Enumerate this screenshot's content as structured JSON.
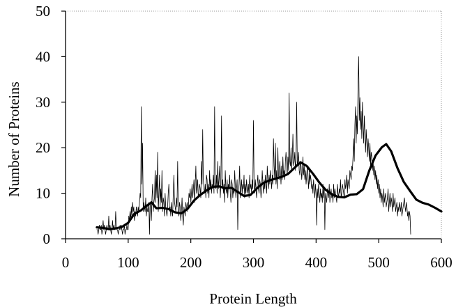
{
  "chart_data": {
    "type": "line",
    "title": "",
    "xlabel": "Protein Length",
    "ylabel": "Number of Proteins",
    "xlim": [
      0,
      600
    ],
    "ylim": [
      0,
      50
    ],
    "xticks": [
      0,
      100,
      200,
      300,
      400,
      500,
      600
    ],
    "yticks": [
      0,
      10,
      20,
      30,
      40,
      50
    ],
    "grid": false,
    "legend": "none",
    "series": [
      {
        "style": "thin-noisy",
        "color": "#000000",
        "x_start": 50,
        "x_step": 1,
        "values": [
          2,
          2,
          1,
          2,
          3,
          2,
          2,
          3,
          1,
          2,
          4,
          2,
          3,
          2,
          1,
          2,
          3,
          2,
          2,
          5,
          2,
          3,
          2,
          1,
          2,
          4,
          2,
          3,
          2,
          2,
          6,
          3,
          2,
          2,
          1,
          2,
          2,
          3,
          2,
          3,
          2,
          1,
          2,
          2,
          3,
          1,
          2,
          2,
          3,
          2,
          2,
          5,
          4,
          6,
          4,
          7,
          5,
          8,
          6,
          7,
          4,
          6,
          5,
          7,
          6,
          5,
          7,
          6,
          8,
          10,
          9,
          29,
          12,
          21,
          6,
          8,
          7,
          6,
          9,
          5,
          7,
          6,
          6,
          8,
          1,
          8,
          8,
          4,
          9,
          12,
          6,
          8,
          9,
          15,
          8,
          14,
          9,
          19,
          6,
          10,
          14,
          7,
          11,
          8,
          15,
          6,
          9,
          8,
          5,
          10,
          7,
          6,
          5,
          7,
          10,
          12,
          6,
          7,
          5,
          8,
          6,
          5,
          10,
          14,
          8,
          7,
          6,
          9,
          7,
          17,
          6,
          5,
          8,
          7,
          4,
          6,
          9,
          5,
          3,
          7,
          6,
          5,
          8,
          7,
          6,
          8,
          7,
          10,
          9,
          11,
          8,
          10,
          12,
          9,
          11,
          13,
          8,
          12,
          16,
          10,
          11,
          13,
          9,
          10,
          12,
          11,
          9,
          17,
          12,
          24,
          13,
          11,
          10,
          12,
          9,
          14,
          13,
          10,
          12,
          9,
          15,
          11,
          13,
          10,
          12,
          11,
          14,
          10,
          29,
          12,
          11,
          14,
          10,
          17,
          11,
          13,
          16,
          9,
          12,
          27,
          11,
          13,
          10,
          12,
          8,
          15,
          11,
          10,
          13,
          9,
          12,
          11,
          14,
          10,
          8,
          13,
          12,
          9,
          11,
          10,
          15,
          12,
          9,
          11,
          13,
          2,
          10,
          12,
          16,
          9,
          11,
          13,
          10,
          12,
          11,
          14,
          9,
          12,
          10,
          13,
          11,
          10,
          12,
          9,
          14,
          11,
          12,
          10,
          13,
          11,
          26,
          12,
          10,
          13,
          11,
          9,
          12,
          14,
          11,
          10,
          13,
          12,
          9,
          11,
          15,
          12,
          10,
          13,
          11,
          14,
          12,
          10,
          16,
          13,
          11,
          14,
          12,
          15,
          13,
          11,
          14,
          12,
          22,
          16,
          13,
          21,
          12,
          15,
          11,
          20,
          14,
          13,
          17,
          15,
          12,
          16,
          13,
          18,
          14,
          15,
          13,
          17,
          19,
          16,
          14,
          18,
          15,
          32,
          17,
          16,
          20,
          15,
          18,
          23,
          16,
          17,
          19,
          15,
          18,
          30,
          16,
          17,
          19,
          15,
          14,
          17,
          16,
          13,
          15,
          18,
          14,
          16,
          13,
          15,
          12,
          14,
          16,
          13,
          11,
          15,
          12,
          14,
          13,
          11,
          12,
          10,
          13,
          11,
          9,
          12,
          10,
          3,
          11,
          9,
          12,
          10,
          8,
          11,
          9,
          10,
          8,
          12,
          9,
          11,
          2,
          10,
          9,
          8,
          11,
          10,
          9,
          12,
          8,
          10,
          11,
          9,
          10,
          8,
          12,
          9,
          11,
          10,
          9,
          8,
          12,
          10,
          9,
          11,
          10,
          13,
          9,
          10,
          12,
          11,
          10,
          9,
          13,
          11,
          12,
          14,
          10,
          13,
          12,
          11,
          15,
          14,
          13,
          16,
          15,
          18,
          22,
          17,
          25,
          29,
          21,
          27,
          23,
          34,
          40,
          26,
          31,
          24,
          28,
          22,
          30,
          25,
          21,
          27,
          23,
          19,
          24,
          21,
          18,
          22,
          20,
          17,
          21,
          16,
          19,
          18,
          15,
          17,
          14,
          16,
          13,
          15,
          12,
          14,
          11,
          13,
          10,
          12,
          9,
          11,
          8,
          10,
          9,
          7,
          11,
          8,
          9,
          10,
          7,
          8,
          9,
          11,
          6,
          8,
          10,
          7,
          9,
          8,
          6,
          10,
          7,
          8,
          9,
          6,
          7,
          8,
          5,
          7,
          6,
          8,
          7,
          6,
          8,
          5,
          6,
          7,
          8,
          9,
          7,
          6,
          8,
          7,
          5,
          6,
          4,
          6,
          5,
          1
        ]
      },
      {
        "style": "thick-smooth",
        "color": "#000000",
        "points": [
          [
            50,
            2.5
          ],
          [
            60,
            2.4
          ],
          [
            70,
            2.1
          ],
          [
            80,
            2.3
          ],
          [
            90,
            2.6
          ],
          [
            100,
            3.5
          ],
          [
            110,
            5.5
          ],
          [
            120,
            6.2
          ],
          [
            130,
            7.3
          ],
          [
            137,
            8.0
          ],
          [
            145,
            6.7
          ],
          [
            155,
            6.8
          ],
          [
            165,
            6.5
          ],
          [
            175,
            5.8
          ],
          [
            185,
            5.6
          ],
          [
            195,
            6.6
          ],
          [
            205,
            8.4
          ],
          [
            215,
            9.6
          ],
          [
            225,
            10.6
          ],
          [
            235,
            11.4
          ],
          [
            245,
            11.5
          ],
          [
            255,
            11.1
          ],
          [
            265,
            11.2
          ],
          [
            275,
            10.3
          ],
          [
            285,
            9.4
          ],
          [
            295,
            9.6
          ],
          [
            305,
            11.0
          ],
          [
            315,
            12.2
          ],
          [
            325,
            12.8
          ],
          [
            335,
            13.2
          ],
          [
            345,
            13.6
          ],
          [
            355,
            14.2
          ],
          [
            365,
            15.5
          ],
          [
            375,
            16.8
          ],
          [
            385,
            16.0
          ],
          [
            395,
            14.3
          ],
          [
            405,
            12.4
          ],
          [
            415,
            10.8
          ],
          [
            425,
            9.8
          ],
          [
            435,
            9.2
          ],
          [
            445,
            9.1
          ],
          [
            455,
            9.7
          ],
          [
            465,
            9.8
          ],
          [
            475,
            10.9
          ],
          [
            485,
            15.0
          ],
          [
            495,
            18.3
          ],
          [
            505,
            20.1
          ],
          [
            512,
            20.8
          ],
          [
            520,
            19.2
          ],
          [
            530,
            15.5
          ],
          [
            540,
            12.5
          ],
          [
            550,
            10.5
          ],
          [
            560,
            8.6
          ],
          [
            570,
            7.9
          ],
          [
            580,
            7.5
          ],
          [
            590,
            6.8
          ],
          [
            600,
            6.0
          ]
        ]
      }
    ]
  }
}
